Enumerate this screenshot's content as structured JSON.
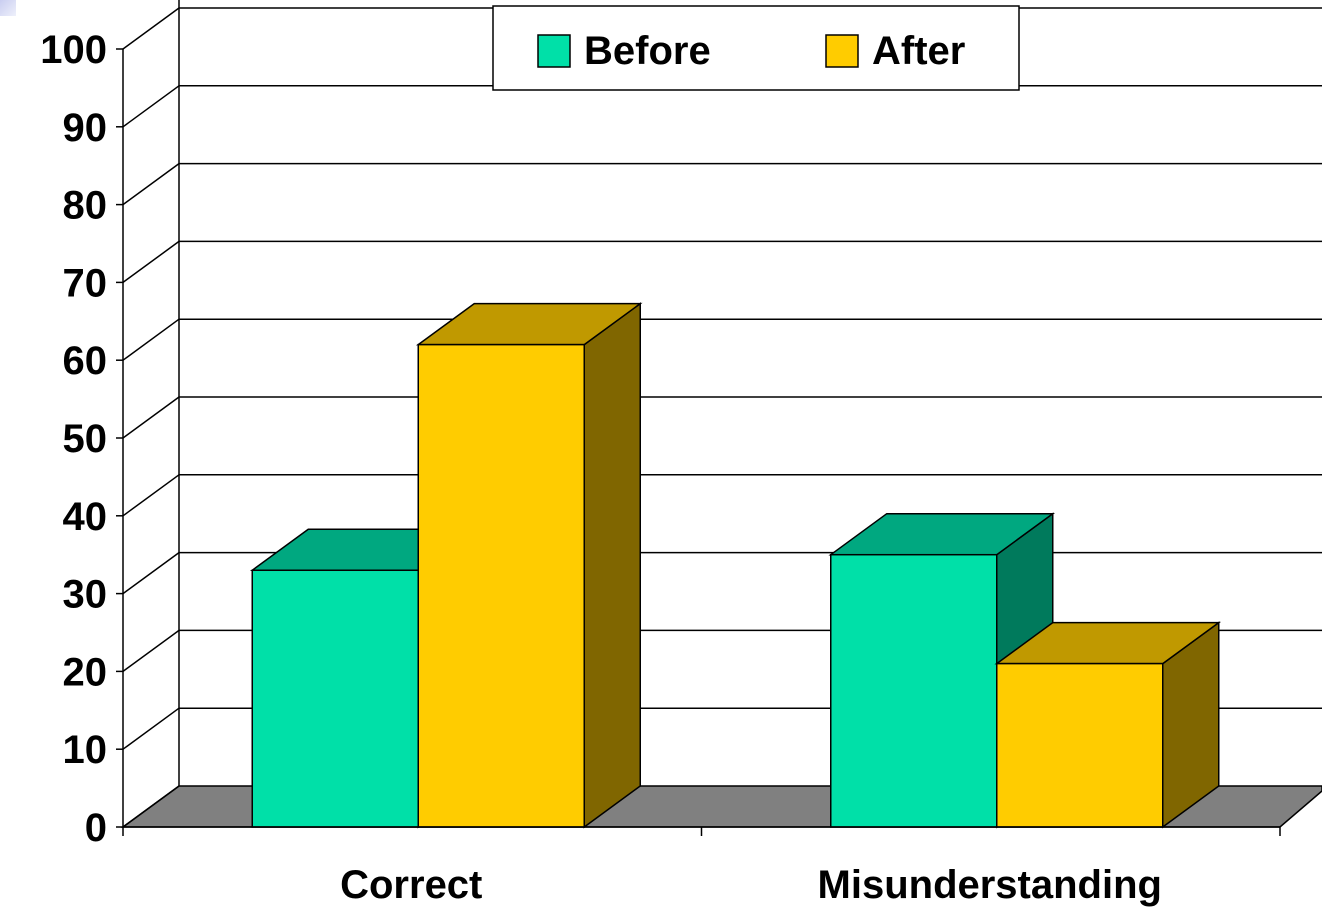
{
  "chart_data": {
    "type": "bar",
    "categories": [
      "Correct",
      "Misunderstanding"
    ],
    "series": [
      {
        "name": "Before",
        "values": [
          33,
          35
        ]
      },
      {
        "name": "After",
        "values": [
          62,
          21
        ]
      }
    ],
    "ylim": [
      0,
      100
    ],
    "yticks": [
      "0",
      "10",
      "20",
      "30",
      "40",
      "50",
      "60",
      "70",
      "80",
      "90",
      "100"
    ],
    "grid": true,
    "legend": "top-center",
    "three_d": true,
    "colors": {
      "Before": {
        "front": "#00e0a8",
        "top": "#00a880",
        "side": "#007a5c"
      },
      "After": {
        "front": "#ffcc00",
        "top": "#c09900",
        "side": "#806600"
      },
      "floor": "#808080",
      "grid": "#000000"
    }
  }
}
